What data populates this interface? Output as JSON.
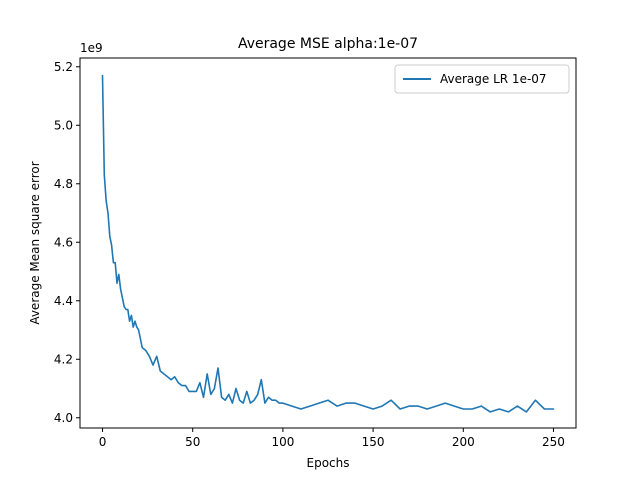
{
  "chart_data": {
    "type": "line",
    "title": "Average MSE alpha:1e-07",
    "xlabel": "Epochs",
    "ylabel": "Average Mean square error",
    "y_multiplier_label": "1e9",
    "xlim": [
      -12.5,
      262.5
    ],
    "ylim": [
      3.965,
      5.23
    ],
    "xticks": [
      0,
      50,
      100,
      150,
      200,
      250
    ],
    "xtick_labels": [
      "0",
      "50",
      "100",
      "150",
      "200",
      "250"
    ],
    "yticks": [
      4.0,
      4.2,
      4.4,
      4.6,
      4.8,
      5.0,
      5.2
    ],
    "ytick_labels": [
      "4.0",
      "4.2",
      "4.4",
      "4.6",
      "4.8",
      "5.0",
      "5.2"
    ],
    "grid": false,
    "legend_position": "top-right",
    "series": [
      {
        "name": "Average LR 1e-07",
        "color": "#1f77b4",
        "x": [
          0,
          1,
          2,
          3,
          4,
          5,
          6,
          7,
          8,
          9,
          10,
          11,
          12,
          13,
          14,
          15,
          16,
          17,
          18,
          19,
          20,
          22,
          24,
          26,
          28,
          30,
          32,
          34,
          36,
          38,
          40,
          42,
          44,
          46,
          48,
          50,
          52,
          54,
          56,
          58,
          60,
          62,
          64,
          66,
          68,
          70,
          72,
          74,
          76,
          78,
          80,
          82,
          84,
          86,
          88,
          90,
          92,
          94,
          96,
          98,
          100,
          105,
          110,
          115,
          120,
          125,
          130,
          135,
          140,
          145,
          150,
          155,
          160,
          165,
          170,
          175,
          180,
          185,
          190,
          195,
          200,
          205,
          210,
          215,
          220,
          225,
          230,
          235,
          240,
          245,
          250
        ],
        "y": [
          5.17,
          4.83,
          4.74,
          4.7,
          4.62,
          4.59,
          4.53,
          4.53,
          4.46,
          4.49,
          4.44,
          4.41,
          4.38,
          4.37,
          4.37,
          4.33,
          4.35,
          4.31,
          4.33,
          4.31,
          4.3,
          4.24,
          4.23,
          4.21,
          4.18,
          4.21,
          4.16,
          4.15,
          4.14,
          4.13,
          4.14,
          4.12,
          4.11,
          4.11,
          4.09,
          4.09,
          4.09,
          4.12,
          4.07,
          4.15,
          4.08,
          4.1,
          4.17,
          4.07,
          4.06,
          4.08,
          4.05,
          4.1,
          4.06,
          4.05,
          4.09,
          4.05,
          4.06,
          4.08,
          4.13,
          4.05,
          4.07,
          4.06,
          4.06,
          4.05,
          4.05,
          4.04,
          4.03,
          4.04,
          4.05,
          4.06,
          4.04,
          4.05,
          4.05,
          4.04,
          4.03,
          4.04,
          4.06,
          4.03,
          4.04,
          4.04,
          4.03,
          4.04,
          4.05,
          4.04,
          4.03,
          4.03,
          4.04,
          4.02,
          4.03,
          4.02,
          4.04,
          4.02,
          4.06,
          4.03,
          4.03
        ]
      }
    ]
  }
}
